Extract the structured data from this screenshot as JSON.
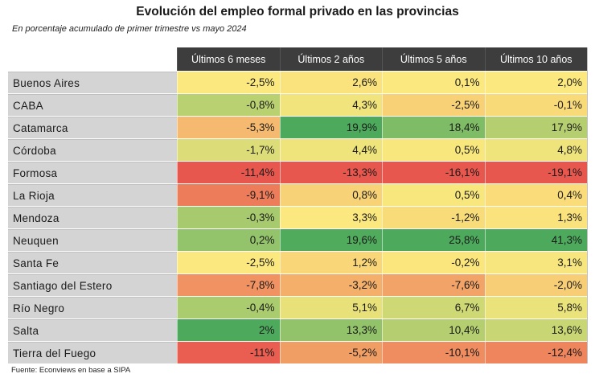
{
  "title": "Evolución del empleo formal privado en las provincias",
  "subtitle": "En porcentaje acumulado de primer trimestre vs mayo 2024",
  "columns": [
    "Últimos 6 meses",
    "Últimos 2 años",
    "Últimos 5 años",
    "Últimos 10 años"
  ],
  "rows": [
    {
      "name": "Buenos Aires",
      "values": [
        "-2,5%",
        "2,6%",
        "0,1%",
        "2,0%"
      ]
    },
    {
      "name": "CABA",
      "values": [
        "-0,8%",
        "4,3%",
        "-2,5%",
        "-0,1%"
      ]
    },
    {
      "name": "Catamarca",
      "values": [
        "-5,3%",
        "19,9%",
        "18,4%",
        "17,9%"
      ]
    },
    {
      "name": "Córdoba",
      "values": [
        "-1,7%",
        "4,4%",
        "0,5%",
        "4,8%"
      ]
    },
    {
      "name": "Formosa",
      "values": [
        "-11,4%",
        "-13,3%",
        "-16,1%",
        "-19,1%"
      ]
    },
    {
      "name": "La Rioja",
      "values": [
        "-9,1%",
        "0,8%",
        "0,5%",
        "0,4%"
      ]
    },
    {
      "name": "Mendoza",
      "values": [
        "-0,3%",
        "3,3%",
        "-1,2%",
        "1,3%"
      ]
    },
    {
      "name": "Neuquen",
      "values": [
        "0,2%",
        "19,6%",
        "25,8%",
        "41,3%"
      ]
    },
    {
      "name": "Santa Fe",
      "values": [
        "-2,5%",
        "1,2%",
        "-0,2%",
        "3,1%"
      ]
    },
    {
      "name": "Santiago del Estero",
      "values": [
        "-7,8%",
        "-3,2%",
        "-7,6%",
        "-2,0%"
      ]
    },
    {
      "name": "Río Negro",
      "values": [
        "-0,4%",
        "5,1%",
        "6,7%",
        "5,8%"
      ]
    },
    {
      "name": "Salta",
      "values": [
        "2%",
        "13,3%",
        "10,4%",
        "13,6%"
      ]
    },
    {
      "name": "Tierra del Fuego",
      "values": [
        "-11%",
        "-5,2%",
        "-10,1%",
        "-12,4%"
      ]
    }
  ],
  "colors": {
    "header_bg": "#3d3d3d",
    "label_bg": "#d4d4d4",
    "heat_red": "#e8574e",
    "heat_yellow": "#fbe87e",
    "heat_green": "#4daa5c"
  },
  "source": "Fuente: Econviews en base a SIPA"
}
